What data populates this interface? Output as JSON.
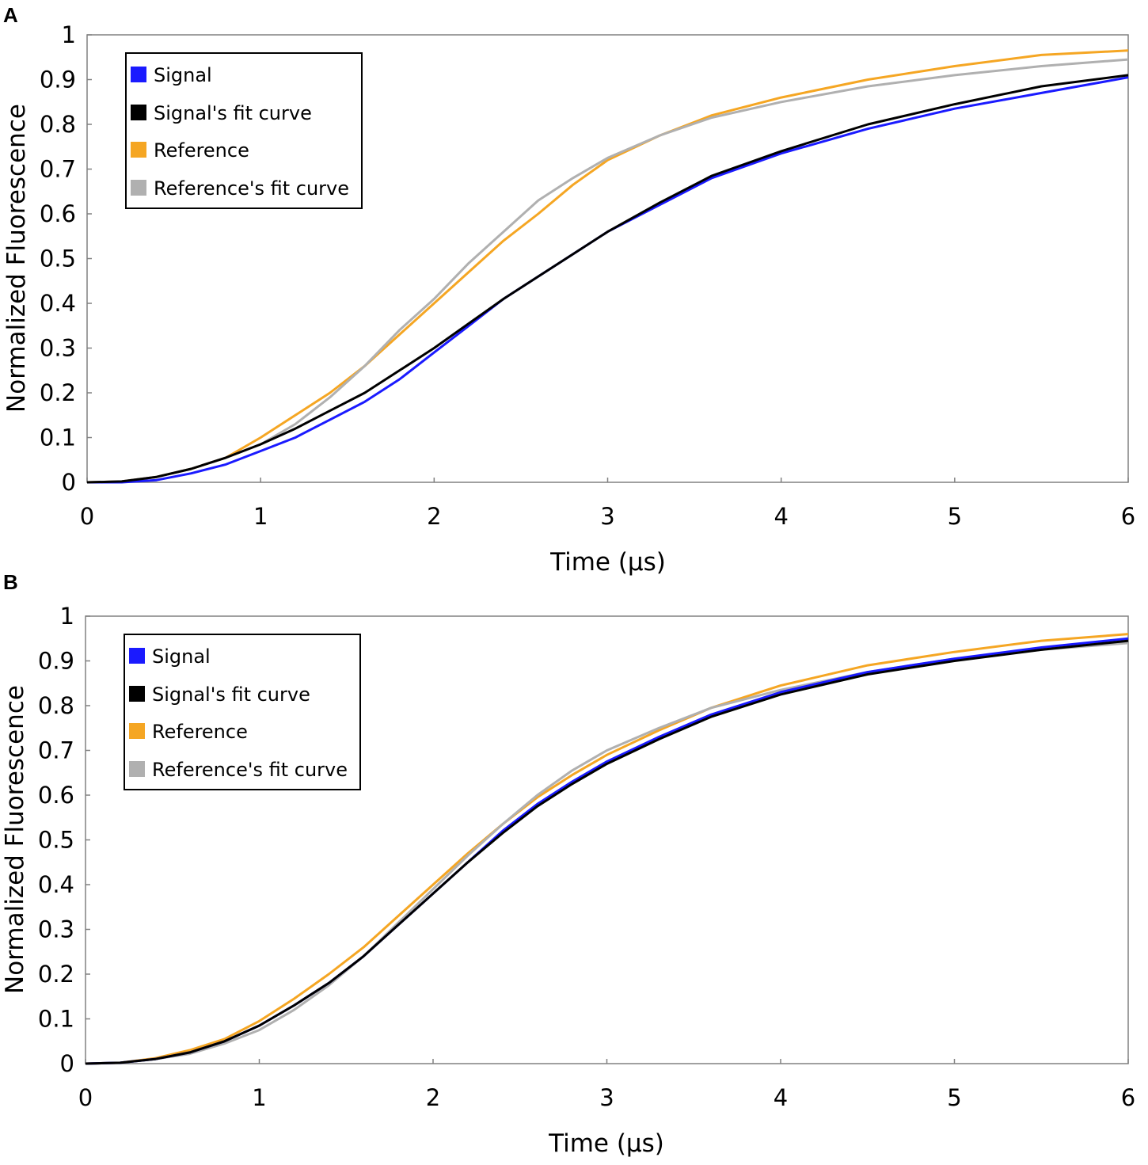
{
  "colors": {
    "signal": "#1a1aff",
    "signal_fit": "#000000",
    "reference": "#f5a623",
    "reference_fit": "#b0b0b0"
  },
  "chart_data": [
    {
      "panel": "A",
      "type": "line",
      "xlabel": "Time (μs)",
      "ylabel": "Normalized Fluorescence",
      "xlim": [
        0,
        6
      ],
      "ylim": [
        0,
        1
      ],
      "xticks": [
        "0",
        "1",
        "2",
        "3",
        "4",
        "5",
        "6"
      ],
      "yticks": [
        "0",
        "0.1",
        "0.2",
        "0.3",
        "0.4",
        "0.5",
        "0.6",
        "0.7",
        "0.8",
        "0.9",
        "1"
      ],
      "legend": [
        "Signal",
        "Signal's fit curve",
        "Reference",
        "Reference's fit curve"
      ],
      "series": [
        {
          "name": "Signal",
          "color_key": "signal",
          "x": [
            0,
            0.2,
            0.4,
            0.6,
            0.8,
            1.0,
            1.2,
            1.4,
            1.6,
            1.8,
            2.0,
            2.2,
            2.4,
            2.6,
            2.8,
            3.0,
            3.3,
            3.6,
            4.0,
            4.5,
            5.0,
            5.5,
            6.0
          ],
          "y": [
            0,
            0.0,
            0.005,
            0.02,
            0.04,
            0.07,
            0.1,
            0.14,
            0.18,
            0.23,
            0.29,
            0.35,
            0.41,
            0.46,
            0.51,
            0.56,
            0.62,
            0.68,
            0.735,
            0.79,
            0.835,
            0.87,
            0.905
          ]
        },
        {
          "name": "Signal's fit curve",
          "color_key": "signal_fit",
          "x": [
            0,
            0.2,
            0.4,
            0.6,
            0.8,
            1.0,
            1.2,
            1.4,
            1.6,
            1.8,
            2.0,
            2.2,
            2.4,
            2.6,
            2.8,
            3.0,
            3.3,
            3.6,
            4.0,
            4.5,
            5.0,
            5.5,
            6.0
          ],
          "y": [
            0,
            0.002,
            0.012,
            0.03,
            0.055,
            0.085,
            0.12,
            0.16,
            0.2,
            0.25,
            0.3,
            0.355,
            0.41,
            0.46,
            0.51,
            0.56,
            0.625,
            0.685,
            0.74,
            0.8,
            0.845,
            0.885,
            0.91
          ]
        },
        {
          "name": "Reference",
          "color_key": "reference",
          "x": [
            0,
            0.2,
            0.4,
            0.6,
            0.8,
            1.0,
            1.2,
            1.4,
            1.6,
            1.8,
            2.0,
            2.2,
            2.4,
            2.6,
            2.8,
            3.0,
            3.3,
            3.6,
            4.0,
            4.5,
            5.0,
            5.5,
            6.0
          ],
          "y": [
            0,
            0.002,
            0.012,
            0.03,
            0.055,
            0.1,
            0.15,
            0.2,
            0.26,
            0.33,
            0.4,
            0.47,
            0.54,
            0.6,
            0.665,
            0.72,
            0.775,
            0.82,
            0.86,
            0.9,
            0.93,
            0.955,
            0.965
          ]
        },
        {
          "name": "Reference's fit curve",
          "color_key": "reference_fit",
          "x": [
            0,
            0.2,
            0.4,
            0.6,
            0.8,
            1.0,
            1.2,
            1.4,
            1.6,
            1.8,
            2.0,
            2.2,
            2.4,
            2.6,
            2.8,
            3.0,
            3.3,
            3.6,
            4.0,
            4.5,
            5.0,
            5.5,
            6.0
          ],
          "y": [
            0,
            0.002,
            0.012,
            0.03,
            0.055,
            0.085,
            0.13,
            0.19,
            0.26,
            0.34,
            0.41,
            0.49,
            0.56,
            0.63,
            0.68,
            0.725,
            0.775,
            0.815,
            0.85,
            0.885,
            0.91,
            0.93,
            0.945
          ]
        }
      ]
    },
    {
      "panel": "B",
      "type": "line",
      "xlabel": "Time (μs)",
      "ylabel": "Normalized Fluorescence",
      "xlim": [
        0,
        6
      ],
      "ylim": [
        0,
        1
      ],
      "xticks": [
        "0",
        "1",
        "2",
        "3",
        "4",
        "5",
        "6"
      ],
      "yticks": [
        "0",
        "0.1",
        "0.2",
        "0.3",
        "0.4",
        "0.5",
        "0.6",
        "0.7",
        "0.8",
        "0.9",
        "1"
      ],
      "legend": [
        "Signal",
        "Signal's fit curve",
        "Reference",
        "Reference's fit curve"
      ],
      "series": [
        {
          "name": "Signal",
          "color_key": "signal",
          "x": [
            0,
            0.2,
            0.4,
            0.6,
            0.8,
            1.0,
            1.2,
            1.4,
            1.6,
            1.8,
            2.0,
            2.2,
            2.4,
            2.6,
            2.8,
            3.0,
            3.3,
            3.6,
            4.0,
            4.5,
            5.0,
            5.5,
            6.0
          ],
          "y": [
            0,
            0.002,
            0.01,
            0.025,
            0.05,
            0.085,
            0.13,
            0.18,
            0.24,
            0.31,
            0.38,
            0.45,
            0.52,
            0.58,
            0.63,
            0.675,
            0.73,
            0.78,
            0.83,
            0.875,
            0.905,
            0.93,
            0.95
          ]
        },
        {
          "name": "Signal's fit curve",
          "color_key": "signal_fit",
          "x": [
            0,
            0.2,
            0.4,
            0.6,
            0.8,
            1.0,
            1.2,
            1.4,
            1.6,
            1.8,
            2.0,
            2.2,
            2.4,
            2.6,
            2.8,
            3.0,
            3.3,
            3.6,
            4.0,
            4.5,
            5.0,
            5.5,
            6.0
          ],
          "y": [
            0,
            0.002,
            0.01,
            0.025,
            0.05,
            0.085,
            0.13,
            0.18,
            0.24,
            0.31,
            0.38,
            0.45,
            0.515,
            0.575,
            0.625,
            0.67,
            0.725,
            0.775,
            0.825,
            0.87,
            0.9,
            0.925,
            0.945
          ]
        },
        {
          "name": "Reference",
          "color_key": "reference",
          "x": [
            0,
            0.2,
            0.4,
            0.6,
            0.8,
            1.0,
            1.2,
            1.4,
            1.6,
            1.8,
            2.0,
            2.2,
            2.4,
            2.6,
            2.8,
            3.0,
            3.3,
            3.6,
            4.0,
            4.5,
            5.0,
            5.5,
            6.0
          ],
          "y": [
            0,
            0.002,
            0.012,
            0.03,
            0.055,
            0.095,
            0.145,
            0.2,
            0.26,
            0.33,
            0.4,
            0.47,
            0.535,
            0.595,
            0.645,
            0.69,
            0.745,
            0.795,
            0.845,
            0.89,
            0.92,
            0.945,
            0.96
          ]
        },
        {
          "name": "Reference's fit curve",
          "color_key": "reference_fit",
          "x": [
            0,
            0.2,
            0.4,
            0.6,
            0.8,
            1.0,
            1.2,
            1.4,
            1.6,
            1.8,
            2.0,
            2.2,
            2.4,
            2.6,
            2.8,
            3.0,
            3.3,
            3.6,
            4.0,
            4.5,
            5.0,
            5.5,
            6.0
          ],
          "y": [
            0,
            0.002,
            0.01,
            0.022,
            0.045,
            0.075,
            0.12,
            0.175,
            0.24,
            0.315,
            0.39,
            0.465,
            0.535,
            0.6,
            0.655,
            0.7,
            0.75,
            0.795,
            0.835,
            0.875,
            0.905,
            0.925,
            0.94
          ]
        }
      ]
    }
  ]
}
